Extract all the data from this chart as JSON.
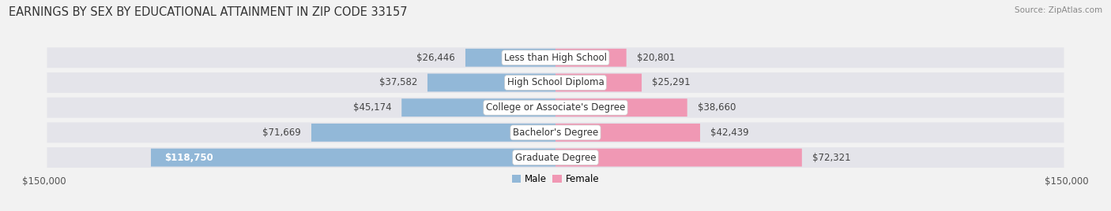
{
  "title": "EARNINGS BY SEX BY EDUCATIONAL ATTAINMENT IN ZIP CODE 33157",
  "source": "Source: ZipAtlas.com",
  "categories": [
    "Graduate Degree",
    "Bachelor's Degree",
    "College or Associate's Degree",
    "High School Diploma",
    "Less than High School"
  ],
  "male_values": [
    118750,
    71669,
    45174,
    37582,
    26446
  ],
  "female_values": [
    72321,
    42439,
    38660,
    25291,
    20801
  ],
  "male_color": "#92b8d8",
  "female_color": "#f098b4",
  "male_label": "Male",
  "female_label": "Female",
  "xlim": 150000,
  "background_color": "#f2f2f2",
  "row_bg_color": "#e4e4ea",
  "title_fontsize": 10.5,
  "label_fontsize": 8.5,
  "value_fontsize": 8.5,
  "axis_fontsize": 8.5
}
